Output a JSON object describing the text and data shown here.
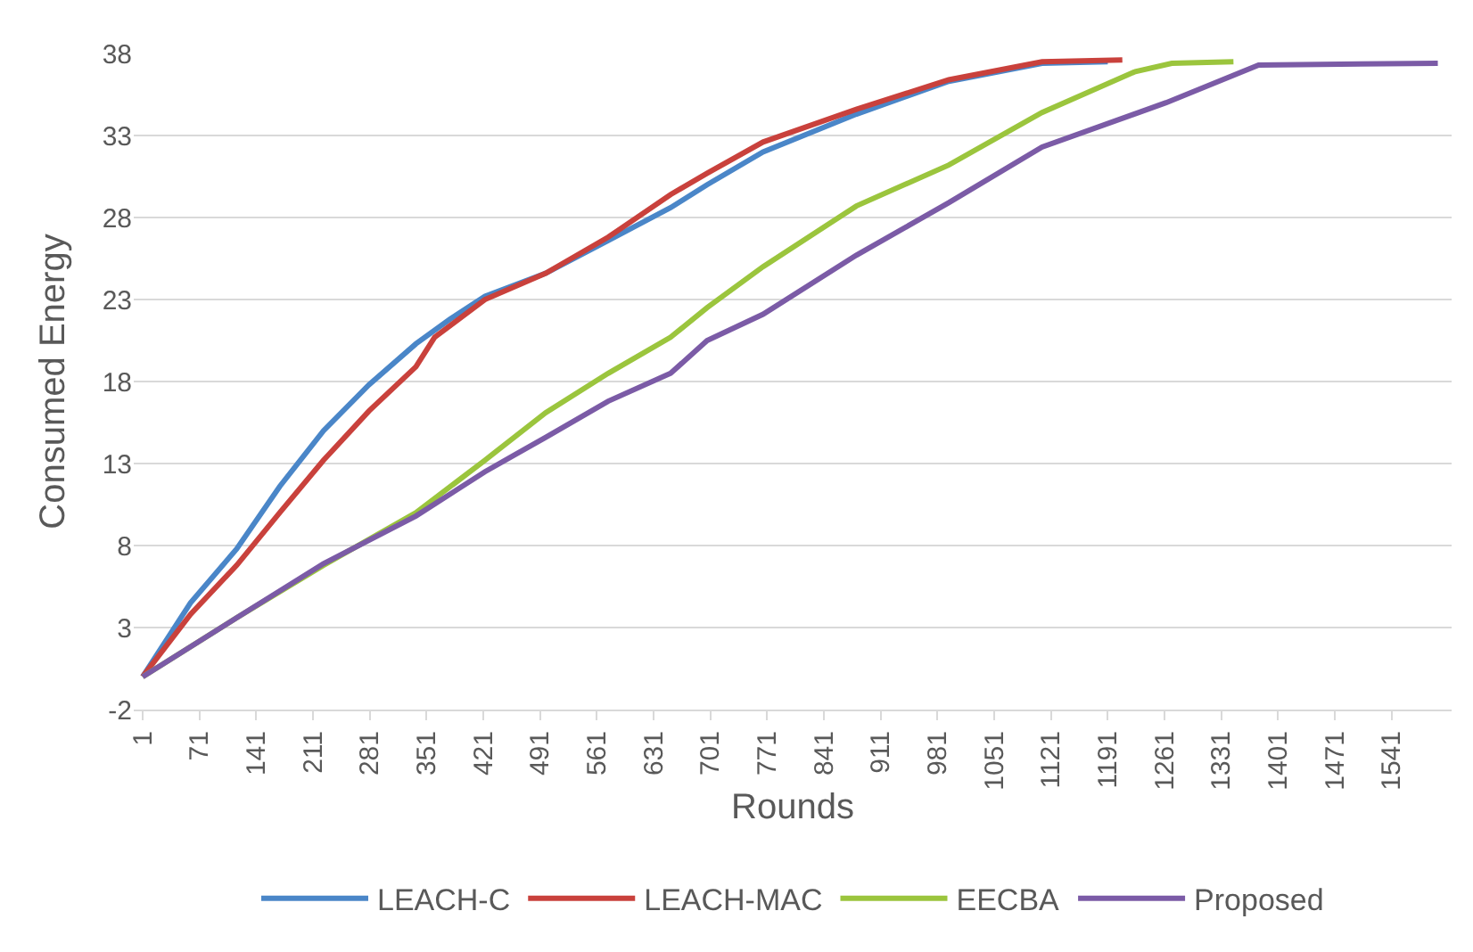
{
  "chart_data": {
    "type": "line",
    "xlabel": "Rounds",
    "ylabel": "Consumed Energy",
    "xlim": [
      -10,
      1615
    ],
    "xticks": [
      1,
      71,
      141,
      211,
      281,
      351,
      421,
      491,
      561,
      631,
      701,
      771,
      841,
      911,
      981,
      1051,
      1121,
      1191,
      1261,
      1331,
      1401,
      1471,
      1541
    ],
    "ylim": [
      -2,
      38
    ],
    "yticks": [
      -2,
      3,
      8,
      13,
      18,
      23,
      28,
      33,
      38
    ],
    "grid": "y",
    "legend": "bottom",
    "marker": "none",
    "line_style": "solid",
    "series": [
      {
        "name": "LEACH-C",
        "color": "#4a86c8",
        "x": [
          1,
          60,
          117,
          170,
          224,
          280,
          338,
          380,
          423,
          498,
          575,
          652,
          697,
          766,
          881,
          995,
          1110,
          1191
        ],
        "values": [
          0,
          4.5,
          7.8,
          11.6,
          15.0,
          17.8,
          20.3,
          21.8,
          23.2,
          24.6,
          26.6,
          28.6,
          30.0,
          32.0,
          34.3,
          36.3,
          37.4,
          37.5
        ]
      },
      {
        "name": "LEACH-MAC",
        "color": "#c9413c",
        "x": [
          1,
          60,
          117,
          170,
          224,
          280,
          338,
          361,
          423,
          498,
          575,
          652,
          697,
          766,
          881,
          995,
          1110,
          1209
        ],
        "values": [
          0,
          3.8,
          6.8,
          10.0,
          13.2,
          16.2,
          18.9,
          20.7,
          23.0,
          24.6,
          26.8,
          29.4,
          30.7,
          32.6,
          34.6,
          36.4,
          37.5,
          37.6
        ]
      },
      {
        "name": "EECBA",
        "color": "#9bc53d",
        "x": [
          1,
          117,
          224,
          338,
          423,
          498,
          575,
          652,
          697,
          766,
          881,
          995,
          1110,
          1225,
          1270,
          1346
        ],
        "values": [
          0,
          3.6,
          6.8,
          10.0,
          13.2,
          16.1,
          18.5,
          20.7,
          22.5,
          25.0,
          28.7,
          31.2,
          34.4,
          36.9,
          37.4,
          37.5
        ]
      },
      {
        "name": "Proposed",
        "color": "#7b5ba6",
        "x": [
          1,
          117,
          224,
          338,
          423,
          498,
          575,
          652,
          697,
          766,
          881,
          995,
          1110,
          1263,
          1377,
          1598
        ],
        "values": [
          0,
          3.6,
          6.9,
          9.8,
          12.5,
          14.6,
          16.8,
          18.5,
          20.5,
          22.1,
          25.7,
          28.9,
          32.3,
          35.0,
          37.3,
          37.4
        ]
      }
    ]
  }
}
